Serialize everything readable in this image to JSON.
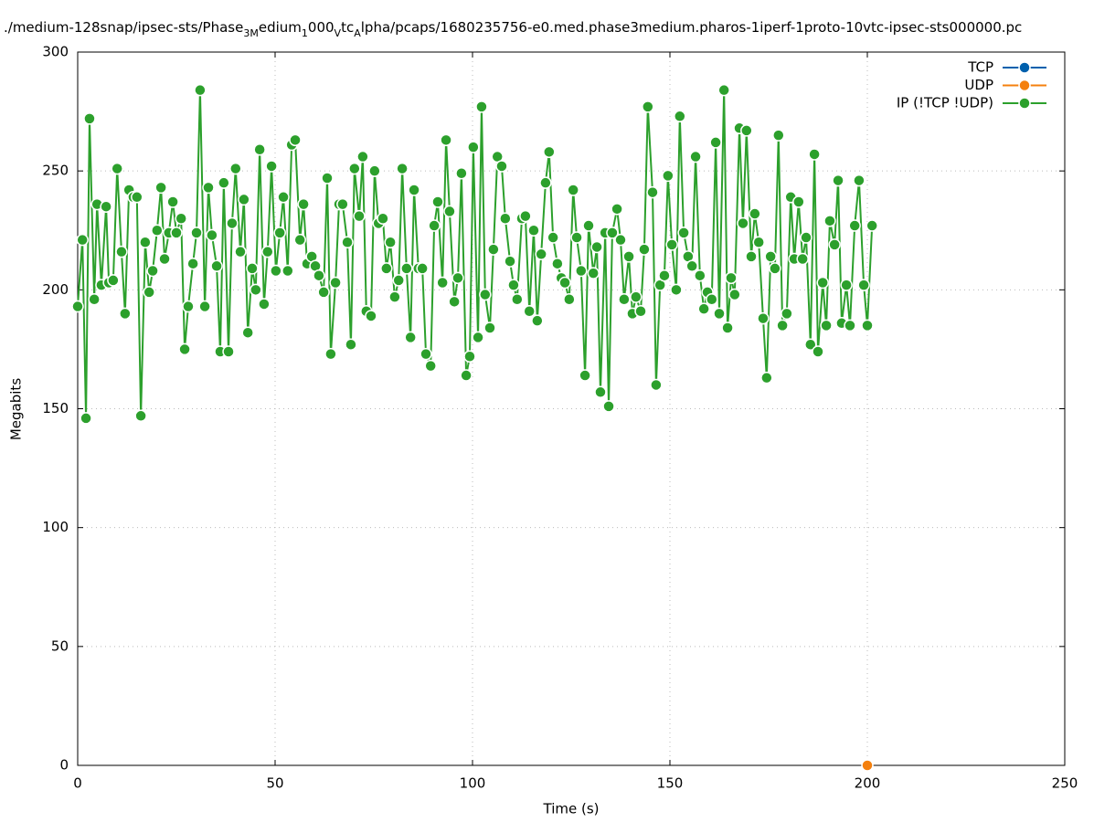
{
  "chart_data": {
    "type": "line",
    "title_parts": [
      "./medium-128snap/ipsec-sts/Phase",
      "3M",
      "edium",
      "1",
      "000",
      "V",
      "tc",
      "A",
      "lpha/pcaps/1680235756-e0.med.phase3medium.pharos-1iperf-1proto-10vtc-ipsec-sts000000.pc"
    ],
    "xlabel": "Time (s)",
    "ylabel": "Megabits",
    "xlim": [
      0,
      250
    ],
    "xticks": [
      0,
      50,
      100,
      150,
      200,
      250
    ],
    "ylim": [
      0,
      300
    ],
    "yticks": [
      0,
      50,
      100,
      150,
      200,
      250,
      300
    ],
    "grid": true,
    "legend": "top-right",
    "series": [
      {
        "name": "TCP",
        "color": "#0060ad",
        "x": [],
        "values": []
      },
      {
        "name": "UDP",
        "color": "#f4800e",
        "x": [
          200
        ],
        "values": [
          0
        ]
      },
      {
        "name": "IP (!TCP  !UDP)",
        "color": "#2ca02c",
        "x": [
          0,
          1.2,
          2.1,
          3.0,
          4.2,
          4.9,
          6.0,
          7.2,
          7.9,
          9.0,
          10.0,
          11.1,
          12.0,
          13.0,
          14.1,
          15.0,
          16.0,
          17.1,
          18.1,
          19.0,
          20.1,
          21.1,
          22.0,
          23.1,
          24.1,
          25.0,
          26.2,
          27.1,
          28.0,
          29.2,
          30.1,
          31.0,
          32.2,
          33.1,
          34.0,
          35.2,
          36.1,
          37.0,
          38.2,
          39.1,
          40.0,
          41.2,
          42.1,
          43.1,
          44.2,
          45.1,
          46.1,
          47.2,
          48.1,
          49.1,
          50.2,
          51.2,
          52.1,
          53.2,
          54.2,
          55.1,
          56.3,
          57.2,
          58.1,
          59.3,
          60.2,
          61.1,
          62.3,
          63.2,
          64.1,
          65.3,
          66.2,
          67.1,
          68.3,
          69.2,
          70.1,
          71.3,
          72.2,
          73.1,
          74.3,
          75.2,
          76.2,
          77.3,
          78.2,
          79.2,
          80.3,
          81.3,
          82.2,
          83.3,
          84.3,
          85.2,
          86.3,
          87.3,
          88.2,
          89.4,
          90.3,
          91.2,
          92.4,
          93.3,
          94.2,
          95.4,
          96.3,
          97.2,
          98.4,
          99.3,
          100.2,
          101.4,
          102.3,
          103.2,
          104.4,
          105.3,
          106.3,
          107.4,
          108.3,
          109.5,
          110.4,
          111.3,
          112.5,
          113.4,
          114.4,
          115.5,
          116.4,
          117.4,
          118.5,
          119.4,
          120.4,
          121.5,
          122.5,
          123.4,
          124.5,
          125.5,
          126.4,
          127.5,
          128.5,
          129.4,
          130.6,
          131.5,
          132.4,
          133.6,
          134.5,
          135.4,
          136.6,
          137.5,
          138.4,
          139.6,
          140.5,
          141.4,
          142.6,
          143.5,
          144.4,
          145.6,
          146.5,
          147.5,
          148.6,
          149.5,
          150.5,
          151.6,
          152.5,
          153.5,
          154.6,
          155.6,
          156.5,
          157.6,
          158.6,
          159.5,
          160.6,
          161.6,
          162.5,
          163.7,
          164.6,
          165.5,
          166.4,
          167.6,
          168.5,
          169.4,
          170.6,
          171.5,
          172.5,
          173.6,
          174.5,
          175.5,
          176.6,
          177.5,
          178.5,
          179.6,
          180.6,
          181.5,
          182.6,
          183.6,
          184.5,
          185.6,
          186.6,
          187.5,
          188.7,
          189.6,
          190.5,
          191.7,
          192.6,
          193.5,
          194.7,
          195.6,
          196.8,
          197.9,
          199.1,
          200.0,
          201.2
        ],
        "values": [
          193,
          221,
          146,
          272,
          196,
          236,
          202,
          235,
          203,
          204,
          251,
          216,
          190,
          242,
          239,
          239,
          147,
          220,
          199,
          208,
          225,
          243,
          213,
          224,
          237,
          224,
          230,
          175,
          193,
          211,
          224,
          284,
          193,
          243,
          223,
          210,
          174,
          245,
          174,
          228,
          251,
          216,
          238,
          182,
          209,
          200,
          259,
          194,
          216,
          252,
          208,
          224,
          239,
          208,
          261,
          263,
          221,
          236,
          211,
          214,
          210,
          206,
          199,
          247,
          173,
          203,
          236,
          236,
          220,
          177,
          251,
          231,
          256,
          191,
          189,
          250,
          228,
          230,
          209,
          220,
          197,
          204,
          251,
          209,
          180,
          242,
          209,
          209,
          173,
          168,
          227,
          237,
          203,
          263,
          233,
          195,
          205,
          249,
          164,
          172,
          260,
          180,
          277,
          198,
          184,
          217,
          256,
          252,
          230,
          212,
          202,
          196,
          230,
          231,
          191,
          225,
          187,
          215,
          245,
          258,
          222,
          211,
          205,
          203,
          196,
          242,
          222,
          208,
          164,
          227,
          207,
          218,
          157,
          224,
          151,
          224,
          234,
          221,
          196,
          214,
          190,
          197,
          191,
          217,
          277,
          241,
          160,
          202,
          206,
          248,
          219,
          200,
          273,
          224,
          214,
          210,
          256,
          206,
          192,
          199,
          196,
          262,
          190,
          284,
          184,
          205,
          198,
          268,
          228,
          267,
          214,
          232,
          220,
          188,
          163,
          214,
          209,
          265,
          185,
          190,
          239,
          213,
          237,
          213,
          222,
          177,
          257,
          174,
          203,
          185,
          229,
          219,
          246,
          186,
          202,
          185,
          227,
          246,
          202,
          185,
          227
        ]
      }
    ]
  }
}
